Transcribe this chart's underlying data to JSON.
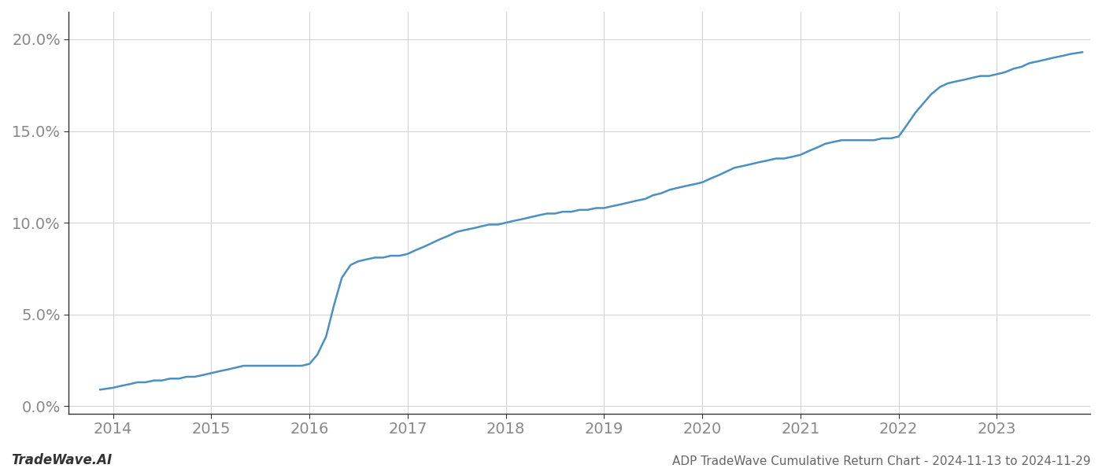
{
  "title": "ADP TradeWave Cumulative Return Chart - 2024-11-13 to 2024-11-29",
  "watermark_left": "TradeWave.AI",
  "line_color": "#4a90c4",
  "line_width": 1.8,
  "background_color": "#ffffff",
  "grid_color": "#d0d0d0",
  "ylim": [
    -0.004,
    0.215
  ],
  "yticks": [
    0.0,
    0.05,
    0.1,
    0.15,
    0.2
  ],
  "ytick_labels": [
    "0.0%",
    "5.0%",
    "10.0%",
    "15.0%",
    "20.0%"
  ],
  "x_years": [
    2014,
    2015,
    2016,
    2017,
    2018,
    2019,
    2020,
    2021,
    2022,
    2023
  ],
  "xlim": [
    2013.55,
    2023.95
  ],
  "data_x": [
    2013.87,
    2014.0,
    2014.08,
    2014.17,
    2014.25,
    2014.33,
    2014.42,
    2014.5,
    2014.58,
    2014.67,
    2014.75,
    2014.83,
    2014.92,
    2015.0,
    2015.08,
    2015.17,
    2015.25,
    2015.33,
    2015.42,
    2015.5,
    2015.58,
    2015.67,
    2015.75,
    2015.83,
    2015.92,
    2016.0,
    2016.08,
    2016.17,
    2016.25,
    2016.33,
    2016.42,
    2016.5,
    2016.58,
    2016.67,
    2016.75,
    2016.83,
    2016.92,
    2017.0,
    2017.08,
    2017.17,
    2017.25,
    2017.33,
    2017.42,
    2017.5,
    2017.58,
    2017.67,
    2017.75,
    2017.83,
    2017.92,
    2018.0,
    2018.08,
    2018.17,
    2018.25,
    2018.33,
    2018.42,
    2018.5,
    2018.58,
    2018.67,
    2018.75,
    2018.83,
    2018.92,
    2019.0,
    2019.08,
    2019.17,
    2019.25,
    2019.33,
    2019.42,
    2019.5,
    2019.58,
    2019.67,
    2019.75,
    2019.83,
    2019.92,
    2020.0,
    2020.08,
    2020.17,
    2020.25,
    2020.33,
    2020.42,
    2020.5,
    2020.58,
    2020.67,
    2020.75,
    2020.83,
    2020.92,
    2021.0,
    2021.08,
    2021.17,
    2021.25,
    2021.33,
    2021.42,
    2021.5,
    2021.58,
    2021.67,
    2021.75,
    2021.83,
    2021.92,
    2022.0,
    2022.08,
    2022.17,
    2022.25,
    2022.33,
    2022.42,
    2022.5,
    2022.58,
    2022.67,
    2022.75,
    2022.83,
    2022.92,
    2023.0,
    2023.08,
    2023.17,
    2023.25,
    2023.33,
    2023.42,
    2023.5,
    2023.58,
    2023.67,
    2023.75,
    2023.87
  ],
  "data_y": [
    0.009,
    0.01,
    0.011,
    0.012,
    0.013,
    0.013,
    0.014,
    0.014,
    0.015,
    0.015,
    0.016,
    0.016,
    0.017,
    0.018,
    0.019,
    0.02,
    0.021,
    0.022,
    0.022,
    0.022,
    0.022,
    0.022,
    0.022,
    0.022,
    0.022,
    0.023,
    0.028,
    0.038,
    0.055,
    0.07,
    0.077,
    0.079,
    0.08,
    0.081,
    0.081,
    0.082,
    0.082,
    0.083,
    0.085,
    0.087,
    0.089,
    0.091,
    0.093,
    0.095,
    0.096,
    0.097,
    0.098,
    0.099,
    0.099,
    0.1,
    0.101,
    0.102,
    0.103,
    0.104,
    0.105,
    0.105,
    0.106,
    0.106,
    0.107,
    0.107,
    0.108,
    0.108,
    0.109,
    0.11,
    0.111,
    0.112,
    0.113,
    0.115,
    0.116,
    0.118,
    0.119,
    0.12,
    0.121,
    0.122,
    0.124,
    0.126,
    0.128,
    0.13,
    0.131,
    0.132,
    0.133,
    0.134,
    0.135,
    0.135,
    0.136,
    0.137,
    0.139,
    0.141,
    0.143,
    0.144,
    0.145,
    0.145,
    0.145,
    0.145,
    0.145,
    0.146,
    0.146,
    0.147,
    0.153,
    0.16,
    0.165,
    0.17,
    0.174,
    0.176,
    0.177,
    0.178,
    0.179,
    0.18,
    0.18,
    0.181,
    0.182,
    0.184,
    0.185,
    0.187,
    0.188,
    0.189,
    0.19,
    0.191,
    0.192,
    0.193
  ],
  "title_fontsize": 11,
  "tick_fontsize": 14,
  "watermark_fontsize": 12,
  "title_color": "#666666",
  "tick_color": "#888888",
  "watermark_color": "#333333",
  "spine_color": "#333333"
}
